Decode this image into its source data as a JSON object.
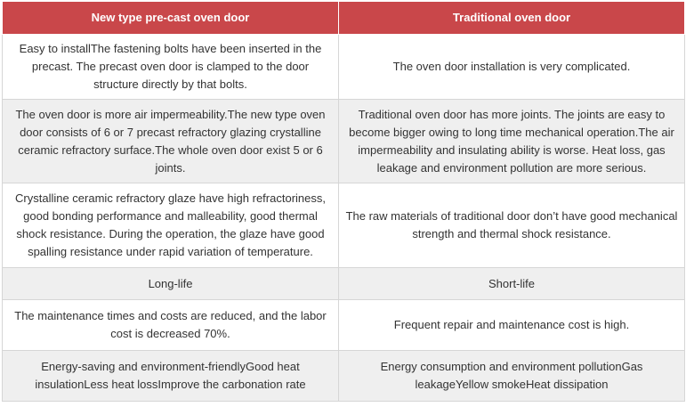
{
  "table": {
    "headers": [
      "New type pre-cast oven door",
      "Traditional oven door"
    ],
    "rows": [
      {
        "left": "Easy to installThe fastening bolts have been inserted in the precast. The precast oven door is clamped to the door structure directly by that bolts.",
        "right": "The oven door installation is very complicated."
      },
      {
        "left": "The oven door is more air impermeability.The new type oven door consists of 6 or 7 precast refractory glazing crystalline ceramic refractory surface.The whole oven door exist 5 or 6 joints.",
        "right": "Traditional oven door has more joints. The joints are easy to become bigger owing to long time mechanical operation.The air impermeability and insulating ability is worse. Heat loss, gas leakage and environment pollution are more serious."
      },
      {
        "left": "Crystalline ceramic refractory glaze have high refractoriness, good bonding performance and malleability, good thermal shock resistance. During the operation, the glaze have good spalling resistance under  rapid variation of temperature.",
        "right": "The raw materials of traditional door don’t have good mechanical strength and thermal shock resistance."
      },
      {
        "left": "Long-life",
        "right": "Short-life"
      },
      {
        "left": "The maintenance times and costs are reduced, and the labor cost is decreased 70%.",
        "right": "Frequent repair and maintenance cost is high."
      },
      {
        "left": "Energy-saving and environment-friendlyGood heat insulationLess heat lossImprove the carbonation rate",
        "right": "Energy consumption and environment pollutionGas leakageYellow smokeHeat dissipation"
      }
    ]
  }
}
